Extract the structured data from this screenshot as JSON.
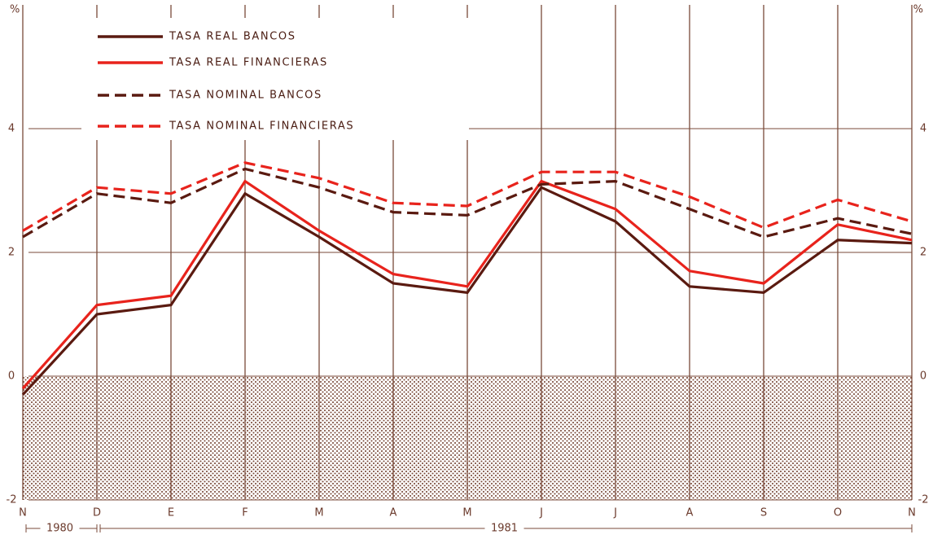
{
  "chart_data": {
    "type": "line",
    "y_unit": "%",
    "categories": [
      "N",
      "D",
      "E",
      "F",
      "M",
      "A",
      "M",
      "J",
      "J",
      "A",
      "S",
      "O",
      "N"
    ],
    "year_labels": [
      "1980",
      "1981"
    ],
    "series": [
      {
        "name": "TASA REAL BANCOS",
        "color": "#5a1a10",
        "dashed": false,
        "values": [
          -0.3,
          1.0,
          1.15,
          2.95,
          2.25,
          1.5,
          1.35,
          3.05,
          2.5,
          1.45,
          1.35,
          2.2,
          2.15
        ]
      },
      {
        "name": "TASA REAL FINANCIERAS",
        "color": "#e8231c",
        "dashed": false,
        "values": [
          -0.2,
          1.15,
          1.3,
          3.15,
          2.35,
          1.65,
          1.45,
          3.15,
          2.7,
          1.7,
          1.5,
          2.45,
          2.2
        ]
      },
      {
        "name": "TASA NOMINAL BANCOS",
        "color": "#5a1a10",
        "dashed": true,
        "values": [
          2.25,
          2.95,
          2.8,
          3.35,
          3.05,
          2.65,
          2.6,
          3.1,
          3.15,
          2.7,
          2.25,
          2.55,
          2.3
        ]
      },
      {
        "name": "TASA NOMINAL FINANCIERAS",
        "color": "#e8231c",
        "dashed": true,
        "values": [
          2.35,
          3.05,
          2.95,
          3.45,
          3.2,
          2.8,
          2.75,
          3.3,
          3.3,
          2.9,
          2.4,
          2.85,
          2.5
        ]
      }
    ],
    "ylim": [
      -2,
      6
    ],
    "yticks": [
      -2,
      0,
      2,
      4
    ],
    "grid": true,
    "negative_shading": true
  }
}
